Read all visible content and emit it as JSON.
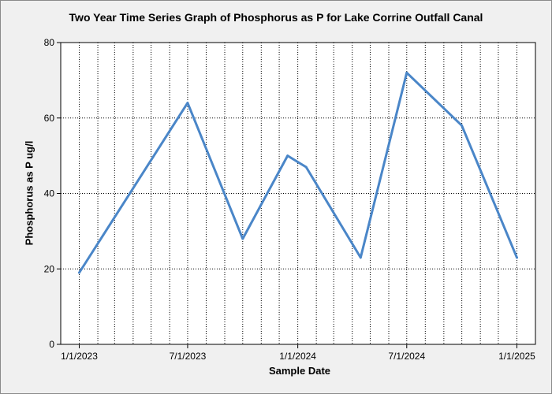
{
  "chart_data": {
    "type": "line",
    "title": "Two Year Time Series Graph of Phosphorus as P for Lake Corrine Outfall Canal",
    "xlabel": "Sample Date",
    "ylabel": "Phosphorus as P ug/l",
    "xlim": [
      "2022-12-01",
      "2025-02-01"
    ],
    "ylim": [
      0,
      80
    ],
    "y_ticks": [
      0,
      20,
      40,
      60,
      80
    ],
    "x_ticks": [
      {
        "date": "2023-01-01",
        "label": "1/1/2023"
      },
      {
        "date": "2023-07-01",
        "label": "7/1/2023"
      },
      {
        "date": "2024-01-01",
        "label": "1/1/2024"
      },
      {
        "date": "2024-07-01",
        "label": "7/1/2024"
      },
      {
        "date": "2025-01-01",
        "label": "1/1/2025"
      }
    ],
    "grid": {
      "vertical": "monthly dotted",
      "horizontal": "dotted at y ticks"
    },
    "line_color": "#4a86c8",
    "series": [
      {
        "points": [
          {
            "x": "2023-01-01",
            "y": 19
          },
          {
            "x": "2023-07-01",
            "y": 64
          },
          {
            "x": "2023-10-01",
            "y": 28
          },
          {
            "x": "2023-12-15",
            "y": 50
          },
          {
            "x": "2024-01-15",
            "y": 47
          },
          {
            "x": "2024-04-15",
            "y": 23
          },
          {
            "x": "2024-07-01",
            "y": 72
          },
          {
            "x": "2024-10-01",
            "y": 58
          },
          {
            "x": "2025-01-01",
            "y": 23
          }
        ]
      }
    ]
  }
}
